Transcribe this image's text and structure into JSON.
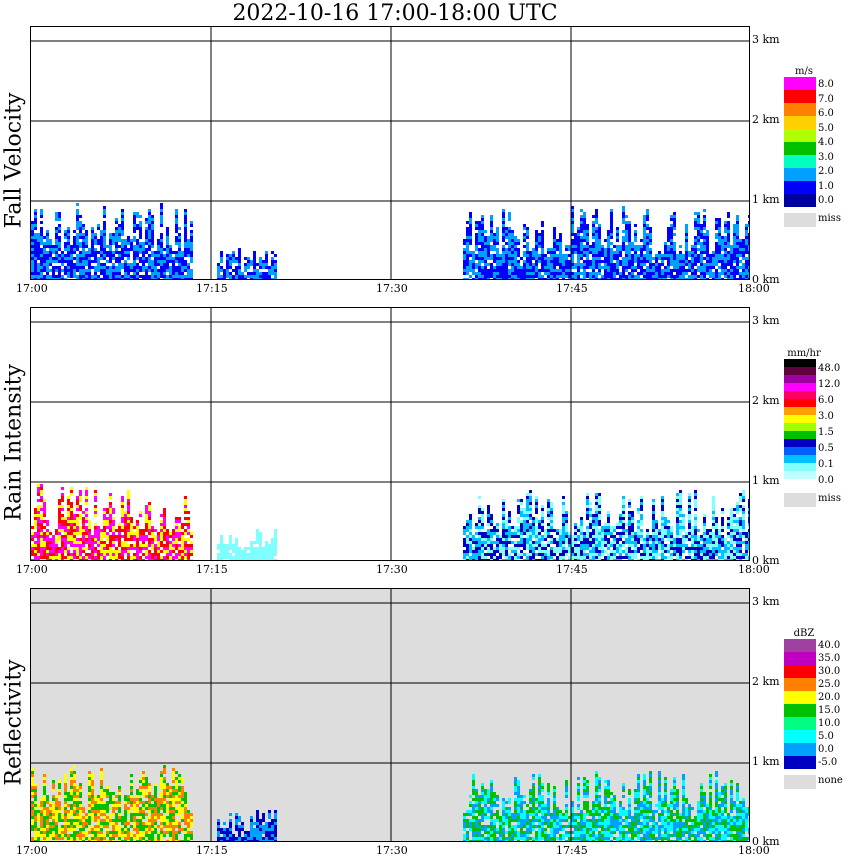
{
  "title": "2022-10-16   17:00-18:00 UTC",
  "x_ticks": [
    "17:00",
    "17:15",
    "17:30",
    "17:45",
    "18:00"
  ],
  "y_ticks": [
    "0 km",
    "1 km",
    "2 km",
    "3 km"
  ],
  "chart_data": [
    {
      "type": "heatmap",
      "title": "Fall Velocity",
      "ylabel": "Fall Velocity",
      "xlim": [
        "17:00",
        "18:00"
      ],
      "ylim_km": [
        0,
        3.2
      ],
      "legend_unit": "m/s",
      "legend_labels": [
        "8.0",
        "7.0",
        "6.0",
        "5.0",
        "4.0",
        "3.0",
        "2.0",
        "1.0",
        "0.0"
      ],
      "legend_colors": [
        "#ff00ff",
        "#ff0000",
        "#ff8000",
        "#ffd000",
        "#b0ff00",
        "#00c000",
        "#00ffc0",
        "#00a0ff",
        "#0000ff",
        "#0000a0"
      ],
      "missing_label": "miss",
      "background": "#ffffff",
      "echo_segments": [
        {
          "start_min": 0,
          "end_min": 13.5,
          "top_km": 1.0,
          "dominant": [
            "#0000ff",
            "#00a0ff"
          ]
        },
        {
          "start_min": 15.5,
          "end_min": 20.5,
          "top_km": 0.45,
          "dominant": [
            "#00a0ff",
            "#0000ff"
          ]
        },
        {
          "start_min": 36,
          "end_min": 60,
          "top_km": 0.95,
          "dominant": [
            "#0000ff",
            "#00a0ff"
          ]
        }
      ]
    },
    {
      "type": "heatmap",
      "title": "Rain Intensity",
      "ylabel": "Rain Intensity",
      "xlim": [
        "17:00",
        "18:00"
      ],
      "ylim_km": [
        0,
        3.2
      ],
      "legend_unit": "mm/hr",
      "legend_labels": [
        "48.0",
        "12.0",
        "6.0",
        "3.0",
        "1.5",
        "0.5",
        "0.1",
        "0.0"
      ],
      "legend_colors": [
        "#000000",
        "#600040",
        "#a000a0",
        "#ff00ff",
        "#ff0060",
        "#ff0000",
        "#ffa000",
        "#ffff00",
        "#a0ff00",
        "#00c000",
        "#0000c0",
        "#0060ff",
        "#00c0ff",
        "#80ffff",
        "#c0ffff",
        "#ffffff"
      ],
      "missing_label": "miss",
      "background": "#ffffff",
      "echo_segments": [
        {
          "start_min": 0,
          "end_min": 13.5,
          "top_km": 1.0,
          "dominant": [
            "#ff00ff",
            "#ff0000",
            "#ffff00"
          ]
        },
        {
          "start_min": 15.5,
          "end_min": 20.5,
          "top_km": 0.45,
          "dominant": [
            "#80ffff"
          ]
        },
        {
          "start_min": 36,
          "end_min": 60,
          "top_km": 0.95,
          "dominant": [
            "#80ffff",
            "#00c0ff",
            "#0000c0"
          ]
        }
      ]
    },
    {
      "type": "heatmap",
      "title": "Reflectivity",
      "ylabel": "Reflectivity",
      "xlim": [
        "17:00",
        "18:00"
      ],
      "ylim_km": [
        0,
        3.2
      ],
      "legend_unit": "dBZ",
      "legend_labels": [
        "40.0",
        "35.0",
        "30.0",
        "25.0",
        "20.0",
        "15.0",
        "10.0",
        "5.0",
        "0.0",
        "-5.0"
      ],
      "legend_colors": [
        "#a040a0",
        "#c000c0",
        "#ff0000",
        "#ff8000",
        "#ffff00",
        "#00c000",
        "#00ff80",
        "#00ffff",
        "#00a0ff",
        "#0000c0"
      ],
      "missing_label": "none",
      "background": "#dddddd",
      "echo_segments": [
        {
          "start_min": 0,
          "end_min": 13.5,
          "top_km": 1.0,
          "dominant": [
            "#ffff00",
            "#ff8000",
            "#00c000"
          ]
        },
        {
          "start_min": 15.5,
          "end_min": 20.5,
          "top_km": 0.45,
          "dominant": [
            "#00a0ff",
            "#0000c0"
          ]
        },
        {
          "start_min": 36,
          "end_min": 60,
          "top_km": 0.95,
          "dominant": [
            "#00ffff",
            "#00a0ff",
            "#00c000"
          ]
        }
      ]
    }
  ]
}
